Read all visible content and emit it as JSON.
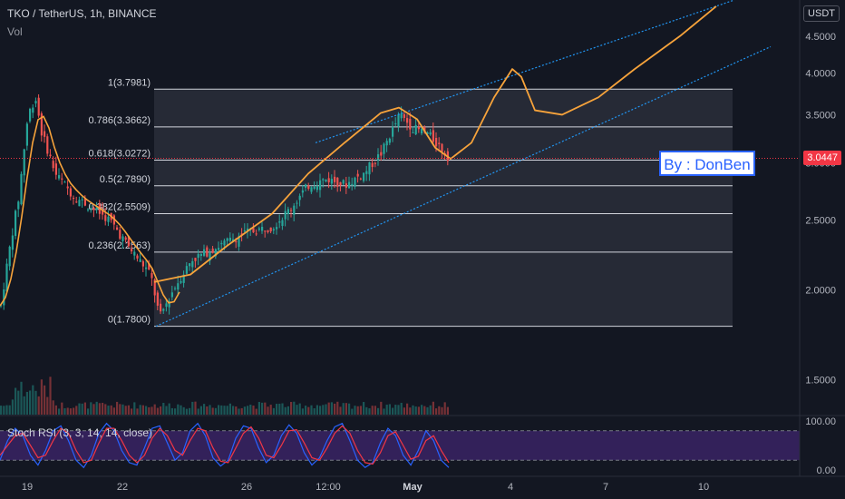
{
  "header": {
    "title": "TKO / TetherUS, 1h, BINANCE",
    "volume_label": "Vol"
  },
  "axis": {
    "unit": "USDT"
  },
  "current_price": "3.0447",
  "author_label": "By : DonBen",
  "stoch_label": "Stoch RSI (3, 3, 14, 14, close)",
  "colors": {
    "background": "#131722",
    "up": "#26a69a",
    "down": "#ef5350",
    "curve": "#f7a33b",
    "channel": "#2196f3",
    "stoch_k": "#2962ff",
    "stoch_d": "#f23645",
    "stoch_band": "#4a2880"
  },
  "chart_data": [
    {
      "type": "candlestick",
      "title": "TKO / TetherUS, 1h, BINANCE",
      "y_scale": "log",
      "ylim": [
        1.35,
        5.05
      ],
      "y_ticks": [
        "4.5000",
        "4.0000",
        "3.5000",
        "3.0000",
        "2.5000",
        "2.0000",
        "1.5000"
      ],
      "x_ticks": [
        "19",
        "22",
        "26",
        "12:00",
        "May",
        "4",
        "7",
        "10"
      ],
      "fibonacci": [
        {
          "label": "1(3.7981)",
          "level": 1,
          "price": 3.7981
        },
        {
          "label": "0.786(3.3662)",
          "level": 0.786,
          "price": 3.3662
        },
        {
          "label": "0.618(3.0272)",
          "level": 0.618,
          "price": 3.0272
        },
        {
          "label": "0.5(2.7890)",
          "level": 0.5,
          "price": 2.789
        },
        {
          "label": "0.382(2.5509)",
          "level": 0.382,
          "price": 2.5509
        },
        {
          "label": "0.236(2.2563)",
          "level": 0.236,
          "price": 2.2563
        },
        {
          "label": "0(1.7800)",
          "level": 0,
          "price": 1.78
        }
      ],
      "price_path": [
        [
          0,
          1.9
        ],
        [
          20,
          2.7
        ],
        [
          30,
          3.5
        ],
        [
          38,
          3.7
        ],
        [
          45,
          3.3
        ],
        [
          60,
          2.9
        ],
        [
          80,
          2.7
        ],
        [
          100,
          2.6
        ],
        [
          120,
          2.5
        ],
        [
          140,
          2.3
        ],
        [
          165,
          2.1
        ],
        [
          175,
          1.83
        ],
        [
          190,
          2.0
        ],
        [
          210,
          2.2
        ],
        [
          240,
          2.3
        ],
        [
          270,
          2.4
        ],
        [
          300,
          2.45
        ],
        [
          320,
          2.6
        ],
        [
          340,
          2.8
        ],
        [
          360,
          2.85
        ],
        [
          380,
          2.8
        ],
        [
          400,
          2.9
        ],
        [
          420,
          3.1
        ],
        [
          440,
          3.5
        ],
        [
          455,
          3.35
        ],
        [
          470,
          3.3
        ],
        [
          485,
          3.15
        ],
        [
          495,
          3.04
        ]
      ],
      "projection_curve": [
        [
          170,
          2.05
        ],
        [
          210,
          2.1
        ],
        [
          250,
          2.3
        ],
        [
          300,
          2.55
        ],
        [
          340,
          2.9
        ],
        [
          380,
          3.2
        ],
        [
          420,
          3.52
        ],
        [
          440,
          3.58
        ],
        [
          460,
          3.45
        ],
        [
          480,
          3.15
        ],
        [
          497,
          3.04
        ],
        [
          520,
          3.2
        ],
        [
          545,
          3.7
        ],
        [
          565,
          4.05
        ],
        [
          575,
          3.95
        ],
        [
          590,
          3.55
        ],
        [
          620,
          3.5
        ],
        [
          660,
          3.7
        ],
        [
          700,
          4.05
        ],
        [
          750,
          4.5
        ],
        [
          790,
          4.95
        ]
      ],
      "channel_lines": [
        {
          "from": [
            172,
            1.78
          ],
          "to": [
            850,
            4.35
          ]
        },
        {
          "from": [
            348,
            3.2
          ],
          "to": [
            810,
            5.05
          ]
        }
      ],
      "shaded_range": {
        "x_start": 170,
        "x_end": 808,
        "price_low": 1.78,
        "price_high": 3.7981
      }
    },
    {
      "type": "line",
      "title": "Stoch RSI (3, 3, 14, 14, close)",
      "ylim": [
        0,
        100
      ],
      "y_ticks": [
        "100.00",
        "0.00"
      ],
      "bands": [
        80,
        20
      ],
      "series": [
        {
          "name": "K",
          "values": [
            20,
            60,
            85,
            70,
            30,
            10,
            40,
            80,
            90,
            60,
            20,
            5,
            30,
            75,
            95,
            80,
            40,
            15,
            10,
            45,
            85,
            90,
            55,
            20,
            35,
            80,
            95,
            70,
            25,
            8,
            20,
            65,
            90,
            85,
            45,
            15,
            30,
            70,
            92,
            75,
            35,
            10,
            25,
            60,
            88,
            95,
            60,
            20,
            5,
            15,
            55,
            85,
            70,
            30,
            10,
            40,
            80,
            60,
            20,
            5
          ]
        },
        {
          "name": "D",
          "values": [
            30,
            50,
            70,
            75,
            50,
            25,
            30,
            60,
            85,
            75,
            40,
            15,
            20,
            55,
            85,
            85,
            60,
            30,
            15,
            30,
            65,
            85,
            70,
            40,
            30,
            60,
            85,
            80,
            45,
            18,
            15,
            45,
            75,
            88,
            65,
            30,
            25,
            50,
            80,
            82,
            55,
            25,
            20,
            45,
            75,
            90,
            75,
            40,
            15,
            12,
            35,
            70,
            78,
            50,
            22,
            28,
            60,
            70,
            40,
            15
          ]
        }
      ]
    }
  ]
}
